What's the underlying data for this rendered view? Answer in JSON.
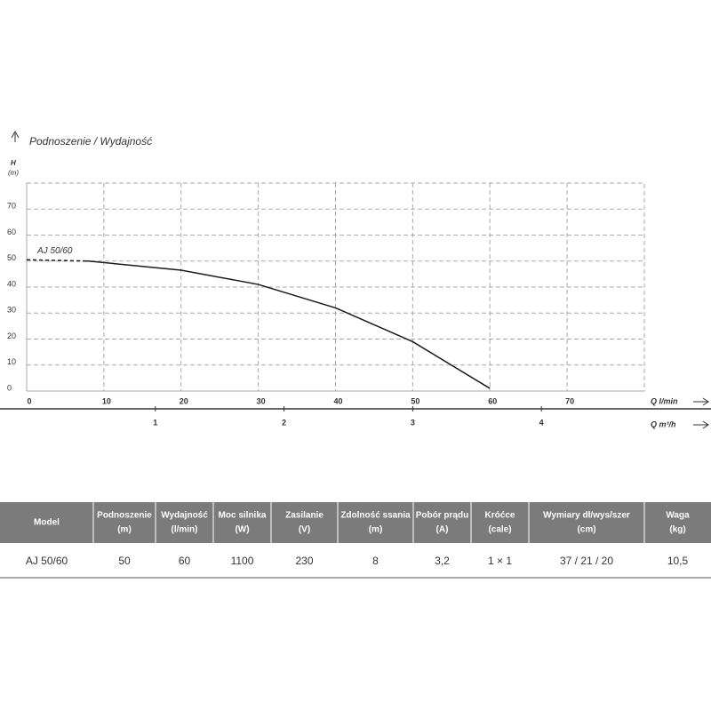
{
  "chart_data": {
    "type": "line",
    "title": "Podnoszenie / Wydajność",
    "y_label": [
      "H",
      "(m)"
    ],
    "x_label": "Q l/min",
    "x2_label": "Q m³/h",
    "series": [
      {
        "name": "AJ 50/60",
        "color": "#1a1a1a",
        "x": [
          0,
          8,
          20,
          30,
          40,
          50,
          60
        ],
        "values": [
          50.5,
          50,
          46.5,
          41,
          32,
          19,
          1
        ]
      }
    ],
    "xlim": [
      0,
      80
    ],
    "xticks": [
      0,
      10,
      20,
      30,
      40,
      50,
      60,
      70
    ],
    "ylim": [
      0,
      80
    ],
    "yticks": [
      0,
      10,
      20,
      30,
      40,
      50,
      60,
      70
    ],
    "x2lim": [
      0,
      4.8
    ],
    "x2ticks": [
      1,
      2,
      3,
      4
    ],
    "grid": true
  },
  "table": {
    "header": [
      [
        "Model"
      ],
      [
        "Podnoszenie",
        "(m)"
      ],
      [
        "Wydajność",
        "(l/min)"
      ],
      [
        "Moc silnika",
        "(W)"
      ],
      [
        "Zasilanie",
        "(V)"
      ],
      [
        "Zdolność ssania",
        "(m)"
      ],
      [
        "Pobór prądu",
        "(A)"
      ],
      [
        "Króćce",
        "(cale)"
      ],
      [
        "Wymiary dł/wys/szer",
        "(cm)"
      ],
      [
        "Waga",
        "(kg)"
      ]
    ],
    "rows": [
      [
        "AJ 50/60",
        "50",
        "60",
        "1100",
        "230",
        "8",
        "3,2",
        "1 × 1",
        "37 / 21 / 20",
        "10,5"
      ]
    ]
  }
}
